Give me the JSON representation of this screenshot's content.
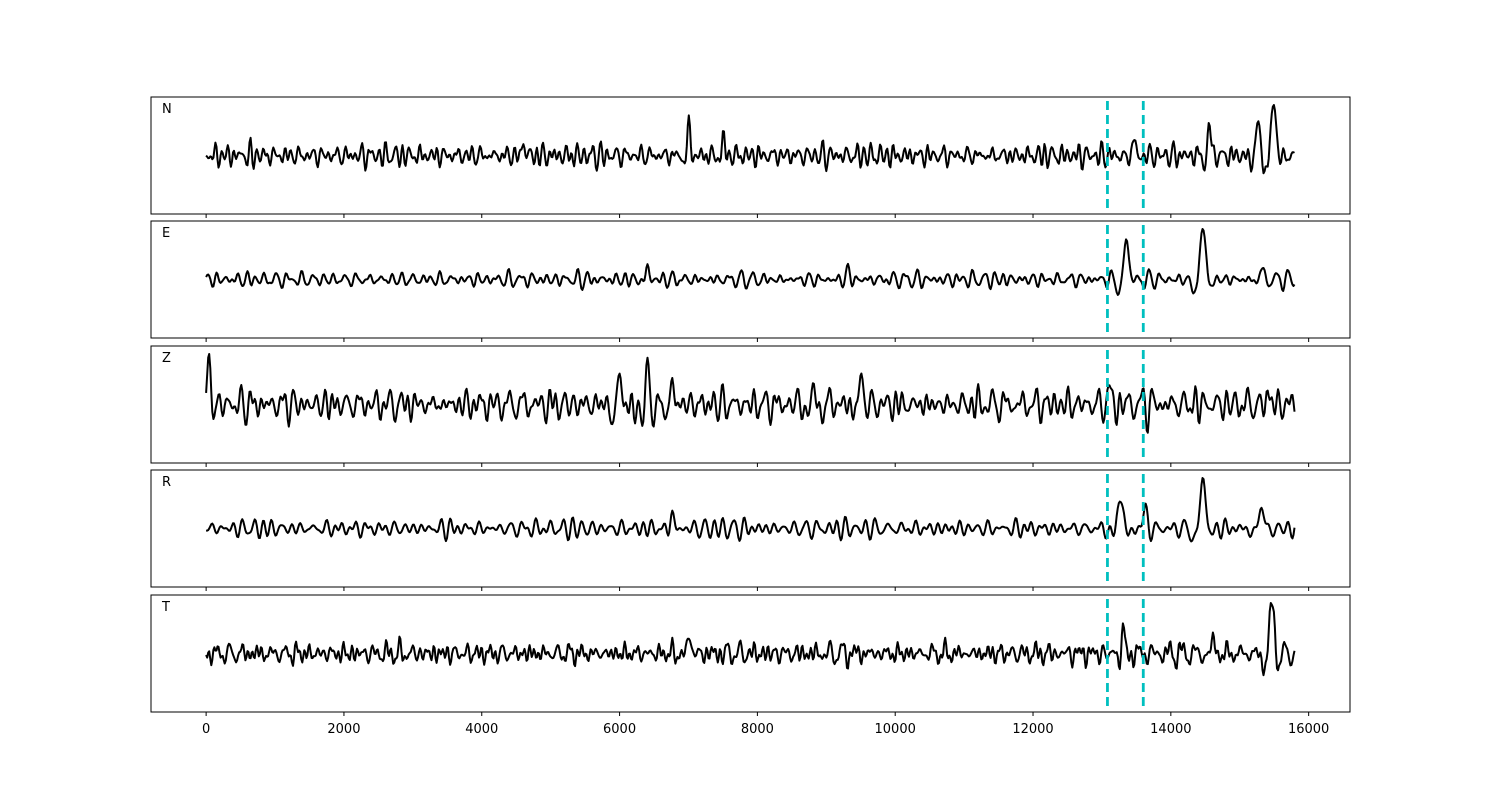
{
  "chart_data": {
    "type": "line",
    "title": "",
    "xlabel": "",
    "ylabel": "",
    "xlim": [
      -800,
      16600
    ],
    "x_ticks": [
      0,
      2000,
      4000,
      6000,
      8000,
      10000,
      12000,
      14000,
      16000
    ],
    "x_tick_labels": [
      "0",
      "2000",
      "4000",
      "6000",
      "8000",
      "10000",
      "12000",
      "14000",
      "16000"
    ],
    "picks": [
      13080,
      13600
    ],
    "pick_color": "#00bfbf",
    "trace_color": "#000000",
    "grid": false,
    "sample_count": 15800,
    "channels": [
      {
        "label": "N",
        "noise": 0.25,
        "events": [
          {
            "t": 4600,
            "a": 0.3,
            "w": 40,
            "p": 180
          },
          {
            "t": 7000,
            "a": 0.55,
            "w": 60,
            "p": 200
          },
          {
            "t": 7500,
            "a": 0.3,
            "w": 60,
            "p": 200
          },
          {
            "t": 13450,
            "a": 0.35,
            "w": 70,
            "p": 200
          },
          {
            "t": 14560,
            "a": 0.6,
            "w": 60,
            "p": 200
          },
          {
            "t": 15250,
            "a": 0.6,
            "w": 80,
            "p": 260
          },
          {
            "t": 15480,
            "a": 1.0,
            "w": 90,
            "p": 300
          }
        ]
      },
      {
        "label": "E",
        "noise": 0.15,
        "events": [
          {
            "t": 6400,
            "a": 0.25,
            "w": 60,
            "p": 200
          },
          {
            "t": 9300,
            "a": 0.2,
            "w": 60,
            "p": 200
          },
          {
            "t": 13350,
            "a": 0.7,
            "w": 100,
            "p": 320
          },
          {
            "t": 14450,
            "a": 1.0,
            "w": 100,
            "p": 320
          },
          {
            "t": 15300,
            "a": 0.25,
            "w": 70,
            "p": 200
          }
        ]
      },
      {
        "label": "Z",
        "noise": 0.3,
        "events": [
          {
            "t": 20,
            "a": 0.85,
            "w": 60,
            "p": 240
          },
          {
            "t": 6000,
            "a": 0.8,
            "w": 110,
            "p": 220
          },
          {
            "t": 6400,
            "a": 0.75,
            "w": 110,
            "p": 220
          },
          {
            "t": 6780,
            "a": 0.45,
            "w": 60,
            "p": 200
          },
          {
            "t": 8800,
            "a": 0.4,
            "w": 200,
            "p": 220
          },
          {
            "t": 9500,
            "a": 0.6,
            "w": 80,
            "p": 240
          },
          {
            "t": 13080,
            "a": 0.35,
            "w": 70,
            "p": 220
          },
          {
            "t": 15400,
            "a": 0.3,
            "w": 80,
            "p": 220
          }
        ]
      },
      {
        "label": "R",
        "noise": 0.18,
        "events": [
          {
            "t": 6750,
            "a": 0.35,
            "w": 60,
            "p": 200
          },
          {
            "t": 13250,
            "a": 0.6,
            "w": 100,
            "p": 320
          },
          {
            "t": 13600,
            "a": 0.35,
            "w": 90,
            "p": 300
          },
          {
            "t": 14450,
            "a": 1.0,
            "w": 100,
            "p": 320
          },
          {
            "t": 15300,
            "a": 0.45,
            "w": 100,
            "p": 300
          }
        ]
      },
      {
        "label": "T",
        "noise": 0.25,
        "events": [
          {
            "t": 7000,
            "a": 0.55,
            "w": 60,
            "p": 200
          },
          {
            "t": 13300,
            "a": 0.5,
            "w": 60,
            "p": 200
          },
          {
            "t": 14600,
            "a": 0.35,
            "w": 80,
            "p": 220
          },
          {
            "t": 15450,
            "a": 1.0,
            "w": 100,
            "p": 300
          }
        ]
      }
    ]
  }
}
